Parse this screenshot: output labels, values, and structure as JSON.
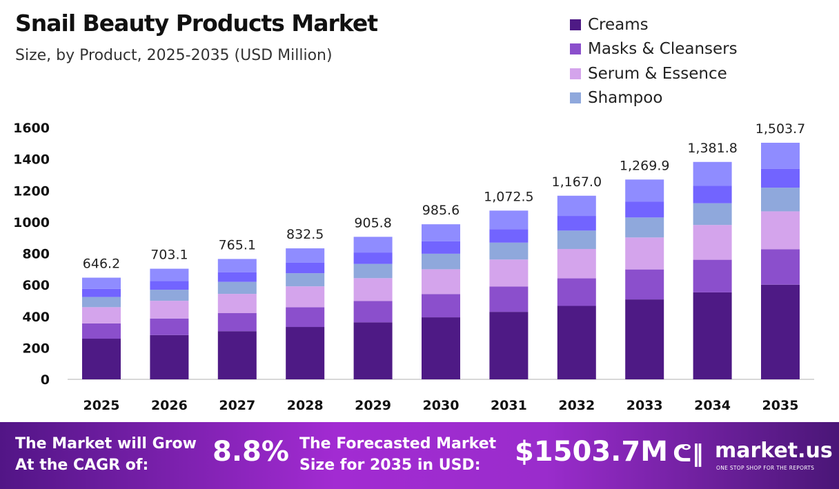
{
  "header": {
    "title": "Snail Beauty Products Market",
    "subtitle": "Size, by Product, 2025-2035 (USD Million)"
  },
  "chart_data": {
    "type": "bar",
    "stacked": true,
    "title": "Snail Beauty Products Market",
    "subtitle": "Size, by Product, 2025-2035 (USD Million)",
    "xlabel": "",
    "ylabel": "",
    "ylim": [
      0,
      1600
    ],
    "yticks": [
      0,
      200,
      400,
      600,
      800,
      1000,
      1200,
      1400,
      1600
    ],
    "grid": false,
    "legend_position": "top-right",
    "categories": [
      "2025",
      "2026",
      "2027",
      "2028",
      "2029",
      "2030",
      "2031",
      "2032",
      "2033",
      "2034",
      "2035"
    ],
    "totals": [
      "646.2",
      "703.1",
      "765.1",
      "832.5",
      "905.8",
      "985.6",
      "1,072.5",
      "1,167.0",
      "1,269.9",
      "1,381.8",
      "1,503.7"
    ],
    "series": [
      {
        "name": "Creams",
        "color": "#4e1a85",
        "values": [
          258.5,
          281.2,
          306.0,
          333.0,
          362.3,
          394.2,
          429.0,
          466.8,
          508.0,
          552.7,
          601.5
        ]
      },
      {
        "name": "Masks & Cleansers",
        "color": "#8b4fcc",
        "values": [
          96.9,
          105.5,
          114.8,
          124.9,
          135.9,
          147.8,
          160.9,
          175.1,
          190.5,
          207.3,
          225.6
        ]
      },
      {
        "name": "Serum & Essence",
        "color": "#d4a4ec",
        "values": [
          103.4,
          112.5,
          122.4,
          133.2,
          144.9,
          157.7,
          171.6,
          186.7,
          203.2,
          221.1,
          240.6
        ]
      },
      {
        "name": "Shampoo",
        "color": "#8fa8dc",
        "values": [
          64.6,
          70.3,
          76.5,
          83.3,
          90.6,
          98.6,
          107.3,
          116.7,
          127.0,
          138.2,
          150.4
        ]
      },
      {
        "color": "#7264ff",
        "values": [
          51.7,
          56.2,
          61.2,
          66.6,
          72.5,
          78.8,
          85.8,
          93.4,
          101.6,
          110.5,
          120.3
        ]
      },
      {
        "color": "#8f8cff",
        "values": [
          71.1,
          77.4,
          84.2,
          91.5,
          99.6,
          108.5,
          117.9,
          128.3,
          139.6,
          152.0,
          165.3
        ]
      }
    ]
  },
  "footer": {
    "cagr_text_1": "The Market will Grow",
    "cagr_text_2": "At the CAGR of:",
    "cagr_value": "8.8%",
    "forecast_text_1": "The Forecasted Market",
    "forecast_text_2": "Size for 2035 in USD:",
    "forecast_value": "$1503.7M",
    "brand": "market.us",
    "brand_tagline": "ONE STOP SHOP FOR THE REPORTS"
  }
}
